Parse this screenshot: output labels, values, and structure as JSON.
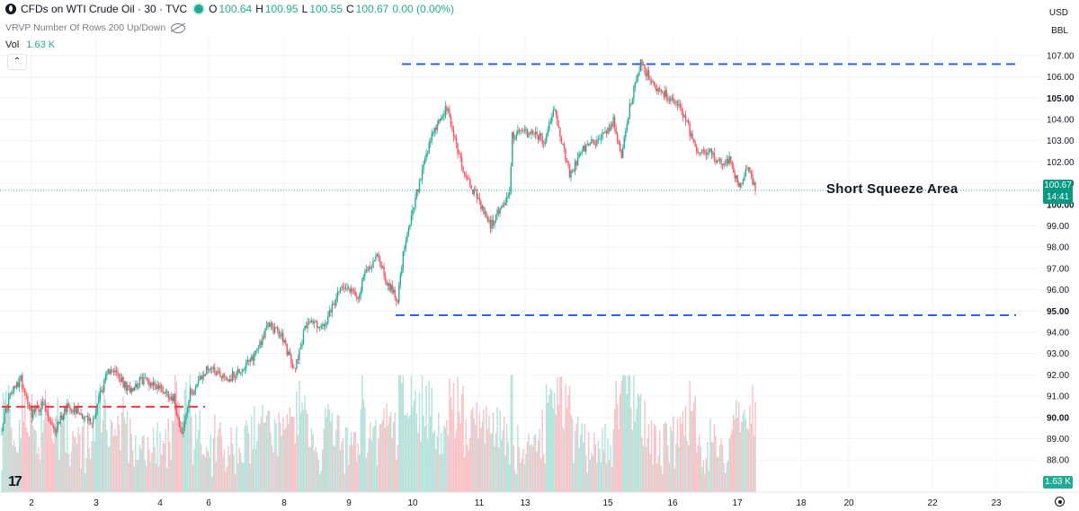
{
  "header": {
    "title": "CFDs on WTI Crude Oil · 30 · TVC",
    "ohlc": [
      {
        "label": "O",
        "value": "100.64"
      },
      {
        "label": "H",
        "value": "100.95"
      },
      {
        "label": "L",
        "value": "100.55"
      },
      {
        "label": "C",
        "value": "100.67"
      },
      {
        "label": "",
        "value": "0.00 (0.00%)"
      }
    ],
    "indicator": "VRVP Number Of Rows 200 Up/Down",
    "volume_label": "Vol",
    "volume_value": "1.63 K",
    "currency": "USD",
    "unit": "BBL"
  },
  "colors": {
    "up": "#22ab94",
    "down": "#f7525f",
    "blue_line": "#2962ff",
    "red_line": "#f23645"
  },
  "price_tag": {
    "price": "100.67",
    "countdown": "14:41"
  },
  "volume_tag": "1.63 K",
  "chart_data": {
    "type": "candlestick",
    "y_ticks": [
      "107.00",
      "106.00",
      "105.00",
      "104.00",
      "103.00",
      "102.00",
      "101.00",
      "100.00",
      "99.00",
      "98.00",
      "97.00",
      "96.00",
      "95.00",
      "94.00",
      "93.00",
      "92.00",
      "91.00",
      "90.00",
      "89.00",
      "88.00"
    ],
    "bold_ticks": [
      "105.00",
      "100.00",
      "95.00",
      "90.00"
    ],
    "x_ticks": [
      "2",
      "3",
      "4",
      "6",
      "8",
      "9",
      "10",
      "11",
      "13",
      "15",
      "16",
      "17",
      "18",
      "20",
      "22",
      "23"
    ],
    "ylim": [
      87.5,
      107.5
    ],
    "anchors": [
      [
        0,
        89.6
      ],
      [
        6,
        91.0
      ],
      [
        14,
        91.8
      ],
      [
        22,
        90.2
      ],
      [
        30,
        90.6
      ],
      [
        38,
        89.3
      ],
      [
        48,
        90.6
      ],
      [
        58,
        90.2
      ],
      [
        66,
        89.7
      ],
      [
        72,
        91.1
      ],
      [
        80,
        92.4
      ],
      [
        92,
        91.3
      ],
      [
        104,
        91.8
      ],
      [
        116,
        91.4
      ],
      [
        126,
        90.9
      ],
      [
        132,
        89.2
      ],
      [
        138,
        91.1
      ],
      [
        152,
        92.4
      ],
      [
        166,
        91.8
      ],
      [
        182,
        92.6
      ],
      [
        196,
        94.4
      ],
      [
        206,
        93.7
      ],
      [
        214,
        92.2
      ],
      [
        224,
        94.6
      ],
      [
        236,
        94.2
      ],
      [
        250,
        96.3
      ],
      [
        262,
        95.7
      ],
      [
        266,
        96.8
      ],
      [
        276,
        97.6
      ],
      [
        282,
        96.3
      ],
      [
        290,
        95.6
      ],
      [
        294,
        97.6
      ],
      [
        304,
        100.5
      ],
      [
        316,
        103.4
      ],
      [
        326,
        104.5
      ],
      [
        338,
        101.6
      ],
      [
        348,
        100.3
      ],
      [
        358,
        99.0
      ],
      [
        368,
        100.1
      ],
      [
        372,
        100.4
      ],
      [
        374,
        103.3
      ],
      [
        390,
        103.4
      ],
      [
        398,
        102.9
      ],
      [
        404,
        104.6
      ],
      [
        416,
        101.4
      ],
      [
        426,
        102.6
      ],
      [
        438,
        103.1
      ],
      [
        448,
        103.9
      ],
      [
        454,
        102.4
      ],
      [
        460,
        104.6
      ],
      [
        468,
        106.6
      ],
      [
        478,
        105.6
      ],
      [
        490,
        105.0
      ],
      [
        500,
        104.2
      ],
      [
        508,
        102.6
      ],
      [
        518,
        102.5
      ],
      [
        528,
        101.8
      ],
      [
        534,
        102.1
      ],
      [
        540,
        100.7
      ],
      [
        546,
        101.8
      ],
      [
        552,
        100.67
      ]
    ],
    "candle_count": 553,
    "resistance_level": 106.6,
    "support_level": 94.8,
    "red_level": 90.5,
    "current_price": 100.67,
    "annotation": "Short Squeeze Area"
  }
}
